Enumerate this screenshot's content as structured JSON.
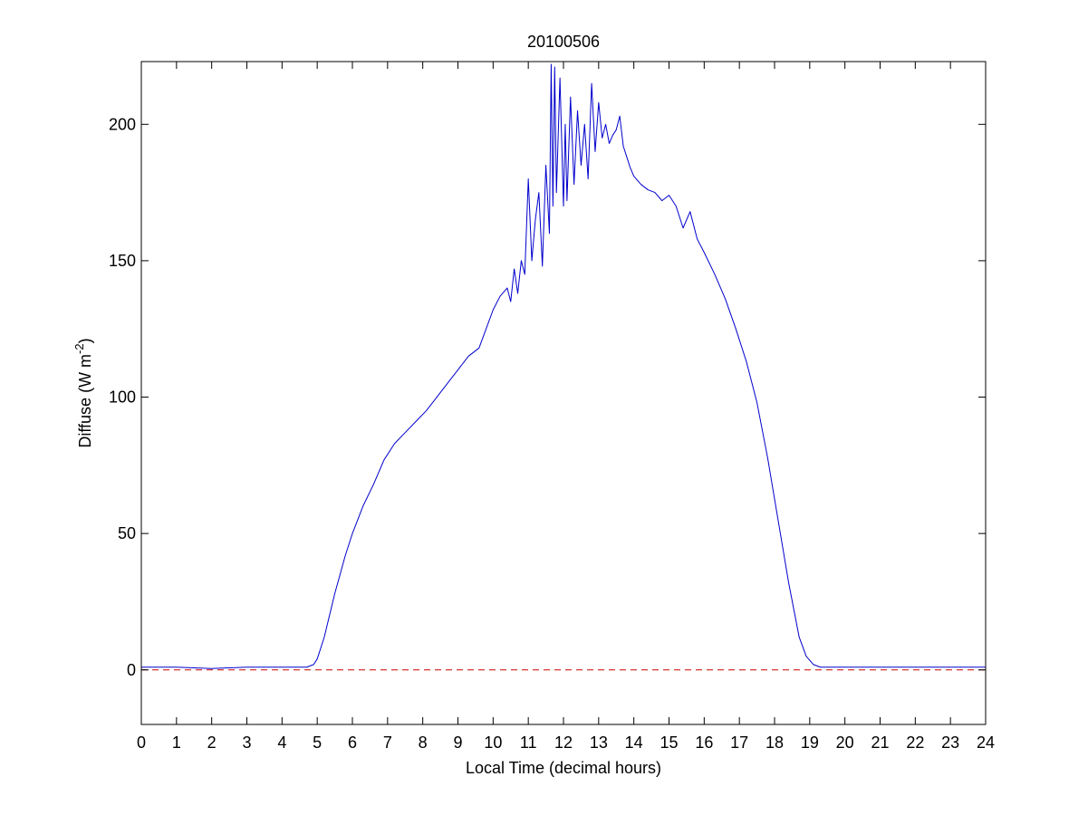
{
  "chart_data": {
    "type": "line",
    "title": "20100506",
    "xlabel": "Local Time (decimal hours)",
    "ylabel": {
      "main": "Diffuse (W m",
      "sup": "-2",
      "close": ")"
    },
    "xlim": [
      0,
      24
    ],
    "ylim": [
      -20,
      223
    ],
    "xticks": [
      0,
      1,
      2,
      3,
      4,
      5,
      6,
      7,
      8,
      9,
      10,
      11,
      12,
      13,
      14,
      15,
      16,
      17,
      18,
      19,
      20,
      21,
      22,
      23,
      24
    ],
    "yticks": [
      0,
      50,
      100,
      150,
      200
    ],
    "grid": false,
    "series": [
      {
        "color": "#0000cc",
        "style": "solid",
        "x": [
          0,
          1,
          2,
          3,
          4,
          4.7,
          4.9,
          5.0,
          5.2,
          5.5,
          5.8,
          6.0,
          6.3,
          6.6,
          6.9,
          7.2,
          7.5,
          7.8,
          8.1,
          8.4,
          8.7,
          9.0,
          9.3,
          9.6,
          9.8,
          10.0,
          10.2,
          10.4,
          10.5,
          10.6,
          10.7,
          10.8,
          10.9,
          11.0,
          11.1,
          11.2,
          11.3,
          11.4,
          11.5,
          11.6,
          11.65,
          11.7,
          11.75,
          11.8,
          11.9,
          12.0,
          12.05,
          12.1,
          12.2,
          12.3,
          12.4,
          12.5,
          12.6,
          12.7,
          12.8,
          12.9,
          13.0,
          13.1,
          13.2,
          13.3,
          13.4,
          13.5,
          13.6,
          13.7,
          13.8,
          13.9,
          14.0,
          14.2,
          14.4,
          14.6,
          14.8,
          15.0,
          15.2,
          15.4,
          15.6,
          15.8,
          16.0,
          16.3,
          16.6,
          16.9,
          17.2,
          17.5,
          17.8,
          18.1,
          18.4,
          18.7,
          18.9,
          19.1,
          19.3,
          19.5,
          19.7,
          20,
          21,
          22,
          23,
          24
        ],
        "y": [
          1,
          1,
          0.5,
          1,
          1,
          1,
          2,
          4,
          12,
          28,
          42,
          50,
          60,
          68,
          77,
          83,
          87,
          91,
          95,
          100,
          105,
          110,
          115,
          118,
          125,
          132,
          137,
          140,
          135,
          147,
          138,
          150,
          145,
          180,
          150,
          165,
          175,
          148,
          185,
          160,
          222,
          170,
          221,
          175,
          217,
          170,
          200,
          172,
          210,
          178,
          205,
          185,
          200,
          180,
          215,
          190,
          208,
          195,
          200,
          193,
          196,
          198,
          203,
          192,
          188,
          184,
          181,
          178,
          176,
          175,
          172,
          174,
          170,
          162,
          168,
          158,
          153,
          145,
          136,
          125,
          113,
          98,
          78,
          55,
          32,
          12,
          5,
          2,
          1,
          1,
          1,
          1,
          1,
          1,
          1,
          1
        ]
      },
      {
        "color": "#cc0000",
        "style": "dashed",
        "x": [
          0,
          24
        ],
        "y": [
          0,
          0
        ]
      }
    ]
  }
}
